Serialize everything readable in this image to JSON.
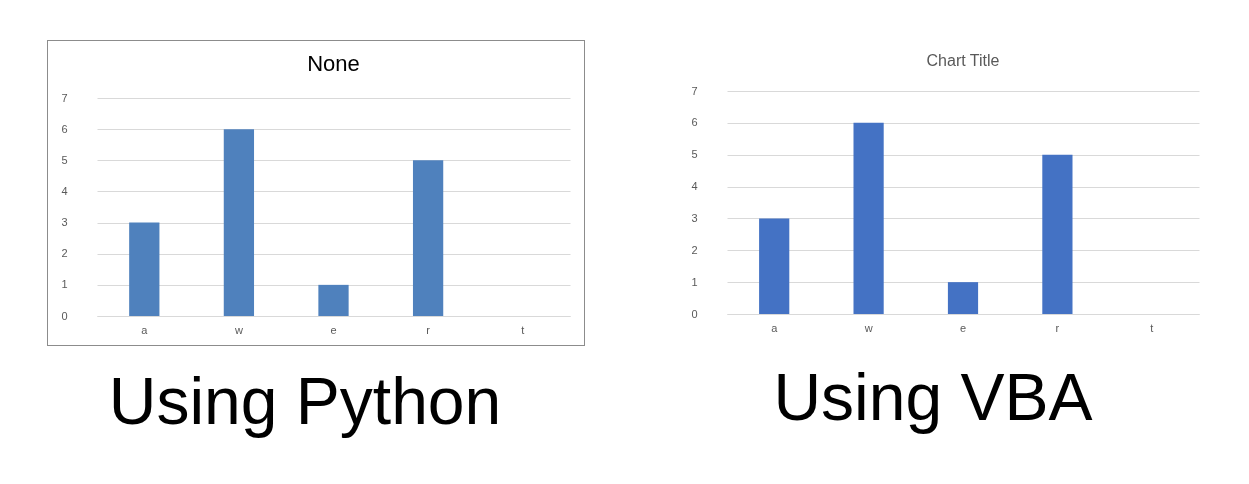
{
  "chart_data": [
    {
      "type": "bar",
      "title": "None",
      "categories": [
        "a",
        "w",
        "e",
        "r",
        "t"
      ],
      "values": [
        3,
        6,
        1,
        5,
        null
      ],
      "color": "#4f81bd",
      "ylim": [
        0,
        7
      ],
      "yticks": [
        0,
        1,
        2,
        3,
        4,
        5,
        6,
        7
      ],
      "grid": "y",
      "annotations": [
        "Using Python"
      ]
    },
    {
      "type": "bar",
      "title": "Chart Title",
      "categories": [
        "a",
        "w",
        "e",
        "r",
        "t"
      ],
      "values": [
        3,
        6,
        1,
        5,
        null
      ],
      "color": "#4472c4",
      "ylim": [
        0,
        7
      ],
      "yticks": [
        0,
        1,
        2,
        3,
        4,
        5,
        6,
        7
      ],
      "grid": "y",
      "annotations": [
        "Using VBA"
      ]
    }
  ]
}
